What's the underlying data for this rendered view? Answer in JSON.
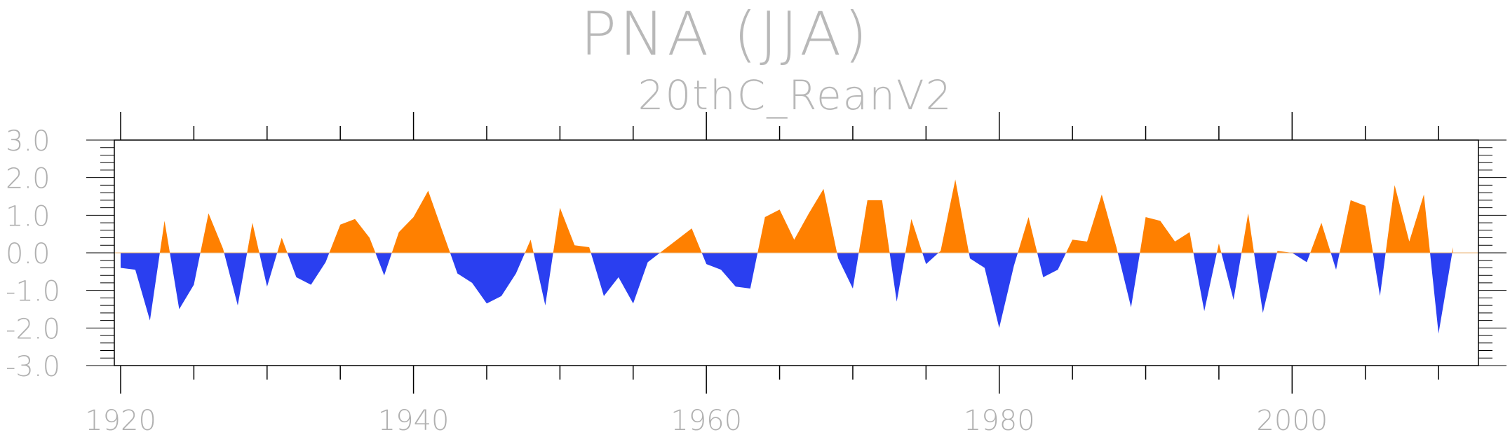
{
  "chart_data": {
    "type": "area",
    "title": "PNA (JJA)",
    "subtitle": "20thC_ReanV2",
    "xlabel": "",
    "ylabel": "",
    "xlim": [
      1920,
      2012
    ],
    "ylim": [
      -3.0,
      3.0
    ],
    "xticks": [
      1920,
      1940,
      1960,
      1980,
      2000
    ],
    "yticks": [
      3.0,
      2.0,
      1.0,
      0.0,
      -1.0,
      -2.0,
      -3.0
    ],
    "ytick_labels": [
      "3.0",
      "2.0",
      "1.0",
      "0.0",
      "-1.0",
      "-2.0",
      "-3.0"
    ],
    "grid": false,
    "legend": "none",
    "colors": {
      "positive": "#ff8000",
      "negative": "#2a3ff0",
      "axis": "#000000",
      "text": "#b0b0b0"
    },
    "x": [
      1920,
      1921,
      1922,
      1923,
      1924,
      1925,
      1926,
      1927,
      1928,
      1929,
      1930,
      1931,
      1932,
      1933,
      1934,
      1935,
      1936,
      1937,
      1938,
      1939,
      1940,
      1941,
      1942,
      1943,
      1944,
      1945,
      1946,
      1947,
      1948,
      1949,
      1950,
      1951,
      1952,
      1953,
      1954,
      1955,
      1956,
      1957,
      1958,
      1959,
      1960,
      1961,
      1962,
      1963,
      1964,
      1965,
      1966,
      1967,
      1968,
      1969,
      1970,
      1971,
      1972,
      1973,
      1974,
      1975,
      1976,
      1977,
      1978,
      1979,
      1980,
      1981,
      1982,
      1983,
      1984,
      1985,
      1986,
      1987,
      1988,
      1989,
      1990,
      1991,
      1992,
      1993,
      1994,
      1995,
      1996,
      1997,
      1998,
      1999,
      2000,
      2001,
      2002,
      2003,
      2004,
      2005,
      2006,
      2007,
      2008,
      2009,
      2010,
      2011
    ],
    "values": [
      -0.4,
      -0.45,
      -1.8,
      0.85,
      -1.5,
      -0.85,
      1.05,
      0.1,
      -1.4,
      0.8,
      -0.9,
      0.4,
      -0.65,
      -0.85,
      -0.25,
      0.75,
      0.9,
      0.4,
      -0.6,
      0.55,
      0.95,
      1.65,
      0.55,
      -0.55,
      -0.8,
      -1.35,
      -1.15,
      -0.55,
      0.35,
      -1.4,
      1.2,
      0.2,
      0.15,
      -1.15,
      -0.65,
      -1.35,
      -0.25,
      0.05,
      0.35,
      0.65,
      -0.3,
      -0.45,
      -0.9,
      -0.95,
      0.95,
      1.15,
      0.35,
      1.05,
      1.7,
      -0.15,
      -0.95,
      1.4,
      1.4,
      -1.3,
      0.9,
      -0.3,
      0.05,
      1.95,
      -0.15,
      -0.4,
      -2.0,
      -0.35,
      0.95,
      -0.65,
      -0.45,
      0.35,
      0.3,
      1.55,
      0.15,
      -1.45,
      0.95,
      0.85,
      0.3,
      0.55,
      -1.55,
      0.25,
      -1.25,
      1.05,
      -1.6,
      0.05,
      0.0,
      -0.25,
      0.8,
      -0.45,
      1.4,
      1.25,
      -1.15,
      1.8,
      0.3,
      1.55,
      -2.15,
      0.15
    ]
  }
}
